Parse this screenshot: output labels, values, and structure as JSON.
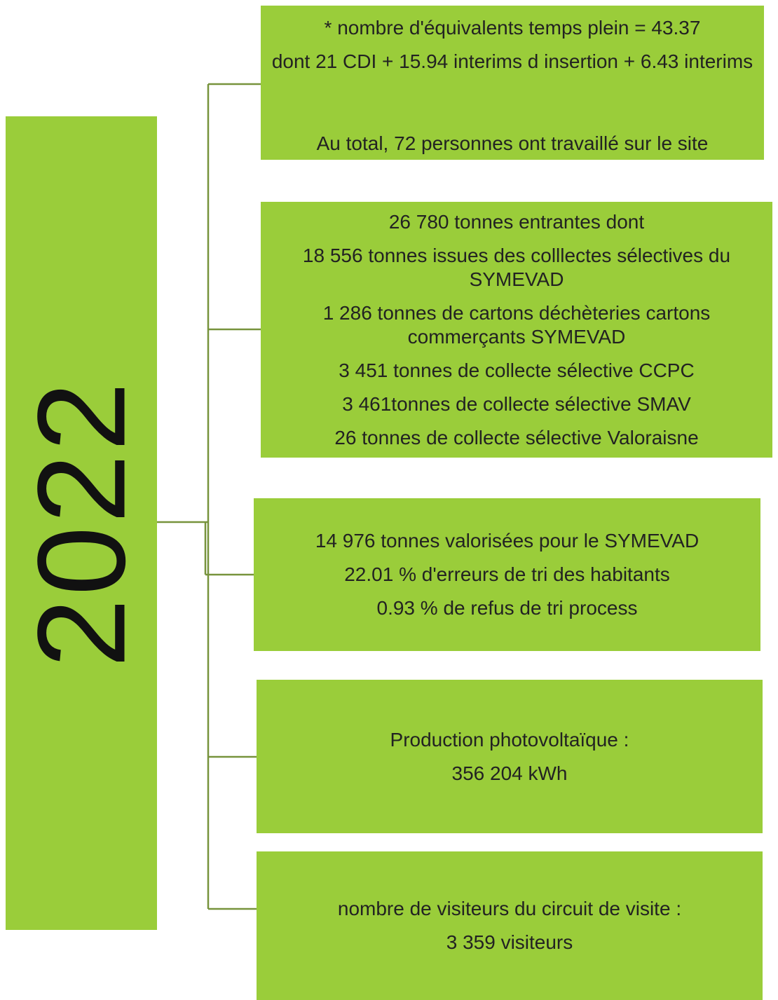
{
  "year": "2022",
  "boxes": [
    {
      "lines": [
        "* nombre d'équivalents temps plein = 43.37",
        "dont 21 CDI + 15.94 interims d insertion + 6.43 interims",
        "Au total, 72 personnes ont travaillé sur le site"
      ]
    },
    {
      "lines": [
        "26 780 tonnes entrantes dont",
        "18 556 tonnes issues des colllectes sélectives du SYMEVAD",
        "1 286 tonnes de cartons déchèteries cartons commerçants SYMEVAD",
        "3 451 tonnes de collecte sélective CCPC",
        "3 461tonnes de collecte sélective SMAV",
        "26 tonnes de collecte sélective Valoraisne"
      ]
    },
    {
      "lines": [
        "14 976 tonnes valorisées pour le SYMEVAD",
        "22.01 % d'erreurs de tri des habitants",
        "0.93 % de refus de tri process"
      ]
    },
    {
      "lines": [
        "Production photovoltaïque :",
        "356 204 kWh"
      ]
    },
    {
      "lines": [
        "nombre de visiteurs du circuit de visite :",
        "3 359 visiteurs"
      ]
    }
  ]
}
